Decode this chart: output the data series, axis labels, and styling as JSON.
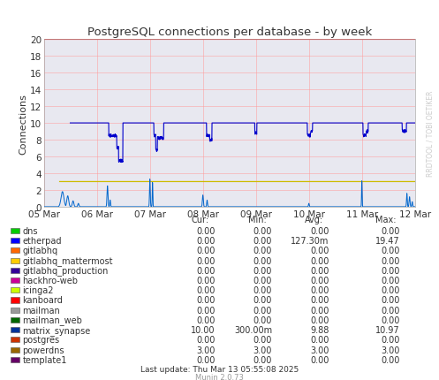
{
  "title": "PostgreSQL connections per database - by week",
  "ylabel": "Connections",
  "ylim": [
    0,
    20
  ],
  "yticks": [
    0,
    2,
    4,
    6,
    8,
    10,
    12,
    14,
    16,
    18,
    20
  ],
  "xtick_labels": [
    "05 Mar",
    "06 Mar",
    "07 Mar",
    "08 Mar",
    "09 Mar",
    "10 Mar",
    "11 Mar",
    "12 Mar"
  ],
  "bg_color": "#ffffff",
  "plot_bg_color": "#e8e8f0",
  "grid_color_major": "#ff9999",
  "title_color": "#333333",
  "watermark": "RRDTOOL / TOBI OETIKER",
  "munin_text": "Munin 2.0.73",
  "last_update": "Last update: Thu Mar 13 05:55:08 2025",
  "legend_items": [
    {
      "label": "dns",
      "color": "#00cc00",
      "cur": "0.00",
      "min": "0.00",
      "avg": "0.00",
      "max": "0.00"
    },
    {
      "label": "etherpad",
      "color": "#0000ff",
      "cur": "0.00",
      "min": "0.00",
      "avg": "127.30m",
      "max": "19.47"
    },
    {
      "label": "gitlabhq",
      "color": "#ff6600",
      "cur": "0.00",
      "min": "0.00",
      "avg": "0.00",
      "max": "0.00"
    },
    {
      "label": "gitlabhq_mattermost",
      "color": "#ffcc00",
      "cur": "0.00",
      "min": "0.00",
      "avg": "0.00",
      "max": "0.00"
    },
    {
      "label": "gitlabhq_production",
      "color": "#330099",
      "cur": "0.00",
      "min": "0.00",
      "avg": "0.00",
      "max": "0.00"
    },
    {
      "label": "hackhro-web",
      "color": "#cc0099",
      "cur": "0.00",
      "min": "0.00",
      "avg": "0.00",
      "max": "0.00"
    },
    {
      "label": "icinga2",
      "color": "#ccff00",
      "cur": "0.00",
      "min": "0.00",
      "avg": "0.00",
      "max": "0.00"
    },
    {
      "label": "kanboard",
      "color": "#ff0000",
      "cur": "0.00",
      "min": "0.00",
      "avg": "0.00",
      "max": "0.00"
    },
    {
      "label": "mailman",
      "color": "#999999",
      "cur": "0.00",
      "min": "0.00",
      "avg": "0.00",
      "max": "0.00"
    },
    {
      "label": "mailman_web",
      "color": "#006600",
      "cur": "0.00",
      "min": "0.00",
      "avg": "0.00",
      "max": "0.00"
    },
    {
      "label": "matrix_synapse",
      "color": "#003399",
      "cur": "10.00",
      "min": "300.00m",
      "avg": "9.88",
      "max": "10.97"
    },
    {
      "label": "postgres",
      "color": "#cc3300",
      "cur": "0.00",
      "min": "0.00",
      "avg": "0.00",
      "max": "0.00"
    },
    {
      "label": "powerdns",
      "color": "#996600",
      "cur": "3.00",
      "min": "3.00",
      "avg": "3.00",
      "max": "3.00"
    },
    {
      "label": "template1",
      "color": "#660066",
      "cur": "0.00",
      "min": "0.00",
      "avg": "0.00",
      "max": "0.00"
    }
  ]
}
